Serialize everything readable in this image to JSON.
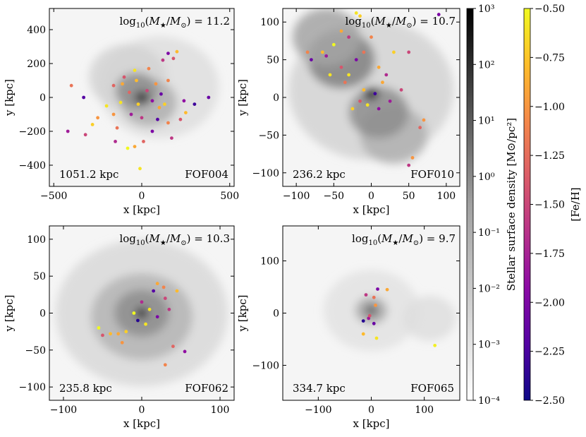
{
  "chart_data": {
    "type": "scatter",
    "panels": [
      {
        "id": "FOF004",
        "mass_label": "log10(M★/M⊙) = 11.2",
        "mass_value": "11.2",
        "name_label": "FOF004",
        "size_label": "1051.2 kpc",
        "xlabel": "x [kpc]",
        "ylabel": "y [kpc]",
        "xlim": [
          -525,
          525
        ],
        "ylim": [
          -525,
          525
        ],
        "xticks": [
          -500,
          0,
          500
        ],
        "xtick_labels": [
          "−500",
          "0",
          "500"
        ],
        "yticks": [
          -400,
          -200,
          0,
          200,
          400
        ],
        "ytick_labels": [
          "−400",
          "−200",
          "0",
          "200",
          "400"
        ],
        "points": [
          [
            -160,
            70
          ],
          [
            -110,
            80
          ],
          [
            -40,
            160
          ],
          [
            40,
            170
          ],
          [
            120,
            220
          ],
          [
            150,
            260
          ],
          [
            200,
            270
          ],
          [
            180,
            230
          ],
          [
            240,
            -20
          ],
          [
            380,
            0
          ],
          [
            -280,
            -160
          ],
          [
            -320,
            -220
          ],
          [
            -420,
            -200
          ],
          [
            -400,
            70
          ],
          [
            -330,
            0
          ],
          [
            -250,
            -120
          ],
          [
            -200,
            -50
          ],
          [
            -150,
            -260
          ],
          [
            -80,
            -300
          ],
          [
            -40,
            -290
          ],
          [
            10,
            -260
          ],
          [
            60,
            -200
          ],
          [
            150,
            -150
          ],
          [
            170,
            -240
          ],
          [
            250,
            -90
          ],
          [
            300,
            -40
          ],
          [
            -10,
            -420
          ],
          [
            220,
            -130
          ],
          [
            100,
            -60
          ],
          [
            -60,
            -100
          ],
          [
            -140,
            -180
          ],
          [
            -20,
            -40
          ],
          [
            30,
            40
          ],
          [
            80,
            80
          ],
          [
            110,
            20
          ],
          [
            -70,
            30
          ],
          [
            -120,
            -30
          ],
          [
            60,
            -20
          ],
          [
            150,
            100
          ],
          [
            -30,
            100
          ],
          [
            0,
            -120
          ],
          [
            90,
            -130
          ],
          [
            -100,
            120
          ],
          [
            130,
            -40
          ],
          [
            -160,
            -100
          ]
        ],
        "feh": [
          -1.3,
          -0.9,
          -0.6,
          -1.1,
          -1.6,
          -2.0,
          -0.8,
          -1.4,
          -1.9,
          -2.1,
          -0.7,
          -1.5,
          -1.8,
          -1.2,
          -2.2,
          -1.0,
          -0.6,
          -1.7,
          -0.5,
          -0.9,
          -1.3,
          -2.0,
          -1.1,
          -1.6,
          -0.8,
          -2.3,
          -0.6,
          -1.4,
          -0.9,
          -1.8,
          -1.2,
          -0.7,
          -1.5,
          -1.0,
          -2.1,
          -1.3,
          -0.6,
          -1.9,
          -1.1,
          -0.8,
          -1.6,
          -2.2,
          -1.4,
          -0.7,
          -1.0
        ],
        "density_blobs": [
          {
            "x": 0,
            "y": 0,
            "r": 40,
            "level": 0.9
          },
          {
            "x": -30,
            "y": 40,
            "r": 120,
            "level": 0.45
          },
          {
            "x": 40,
            "y": -30,
            "r": 160,
            "level": 0.3
          },
          {
            "x": -80,
            "y": 120,
            "r": 220,
            "level": 0.15
          },
          {
            "x": 100,
            "y": 60,
            "r": 340,
            "level": 0.1
          }
        ]
      },
      {
        "id": "FOF010",
        "mass_label": "log10(M★/M⊙) = 10.7",
        "mass_value": "10.7",
        "name_label": "FOF010",
        "size_label": "236.2 kpc",
        "xlabel": "x [kpc]",
        "ylabel": "y [kpc]",
        "xlim": [
          -118,
          118
        ],
        "ylim": [
          -118,
          118
        ],
        "xticks": [
          -100,
          -50,
          0,
          50,
          100
        ],
        "xtick_labels": [
          "−100",
          "−50",
          "0",
          "50",
          "100"
        ],
        "yticks": [
          -100,
          -50,
          0,
          50,
          100
        ],
        "ytick_labels": [
          "−100",
          "−50",
          "0",
          "50",
          "100"
        ],
        "points": [
          [
            -20,
            112
          ],
          [
            -15,
            108
          ],
          [
            -40,
            88
          ],
          [
            -30,
            80
          ],
          [
            -50,
            70
          ],
          [
            -60,
            55
          ],
          [
            -85,
            60
          ],
          [
            -80,
            50
          ],
          [
            -65,
            60
          ],
          [
            -40,
            40
          ],
          [
            -30,
            30
          ],
          [
            -20,
            50
          ],
          [
            -10,
            60
          ],
          [
            10,
            40
          ],
          [
            20,
            30
          ],
          [
            30,
            60
          ],
          [
            50,
            60
          ],
          [
            70,
            -30
          ],
          [
            65,
            -40
          ],
          [
            55,
            -80
          ],
          [
            50,
            -90
          ],
          [
            -10,
            10
          ],
          [
            5,
            5
          ],
          [
            -5,
            -10
          ],
          [
            10,
            -15
          ],
          [
            -15,
            -5
          ],
          [
            90,
            110
          ],
          [
            -35,
            20
          ],
          [
            -25,
            -15
          ],
          [
            15,
            20
          ],
          [
            25,
            -5
          ],
          [
            -55,
            30
          ],
          [
            0,
            80
          ],
          [
            40,
            10
          ]
        ],
        "feh": [
          -0.6,
          -0.7,
          -0.9,
          -1.6,
          -0.5,
          -1.8,
          -1.1,
          -2.1,
          -0.8,
          -1.4,
          -0.6,
          -2.0,
          -1.2,
          -0.9,
          -1.7,
          -0.7,
          -1.5,
          -1.0,
          -1.3,
          -1.0,
          -1.6,
          -0.8,
          -2.3,
          -0.6,
          -1.9,
          -1.4,
          -2.0,
          -1.2,
          -0.7,
          -0.9,
          -1.8,
          -0.6,
          -1.1,
          -1.5
        ],
        "density_blobs": [
          {
            "x": 0,
            "y": 5,
            "r": 10,
            "level": 0.95
          },
          {
            "x": -40,
            "y": 50,
            "r": 45,
            "level": 0.5
          },
          {
            "x": 10,
            "y": -20,
            "r": 40,
            "level": 0.45
          },
          {
            "x": -60,
            "y": 80,
            "r": 45,
            "level": 0.35
          },
          {
            "x": 30,
            "y": -50,
            "r": 45,
            "level": 0.3
          },
          {
            "x": 0,
            "y": 10,
            "r": 110,
            "level": 0.15
          }
        ]
      },
      {
        "id": "FOF062",
        "mass_label": "log10(M★/M⊙) = 10.3",
        "mass_value": "10.3",
        "name_label": "FOF062",
        "size_label": "235.8 kpc",
        "xlabel": "x [kpc]",
        "ylabel": "y [kpc]",
        "xlim": [
          -118,
          118
        ],
        "ylim": [
          -118,
          118
        ],
        "xticks": [
          -100,
          0,
          100
        ],
        "xtick_labels": [
          "−100",
          "0",
          "100"
        ],
        "yticks": [
          -100,
          -50,
          0,
          50,
          100
        ],
        "ytick_labels": [
          "−100",
          "−50",
          "0",
          "50",
          "100"
        ],
        "points": [
          [
            20,
            40
          ],
          [
            28,
            35
          ],
          [
            15,
            30
          ],
          [
            45,
            30
          ],
          [
            30,
            20
          ],
          [
            0,
            15
          ],
          [
            10,
            5
          ],
          [
            -10,
            0
          ],
          [
            20,
            -5
          ],
          [
            -55,
            -20
          ],
          [
            -40,
            -28
          ],
          [
            -30,
            -28
          ],
          [
            -20,
            -25
          ],
          [
            -25,
            -40
          ],
          [
            -50,
            -30
          ],
          [
            40,
            -45
          ],
          [
            55,
            -52
          ],
          [
            30,
            -70
          ],
          [
            5,
            -15
          ],
          [
            35,
            5
          ],
          [
            -5,
            -10
          ]
        ],
        "feh": [
          -0.9,
          -1.1,
          -2.2,
          -0.8,
          -1.5,
          -1.7,
          -0.6,
          -0.5,
          -2.0,
          -0.5,
          -0.8,
          -0.9,
          -0.7,
          -1.0,
          -1.4,
          -1.3,
          -1.9,
          -1.1,
          -0.6,
          -1.6,
          -2.4
        ],
        "density_blobs": [
          {
            "x": 0,
            "y": 0,
            "r": 8,
            "level": 0.95
          },
          {
            "x": 0,
            "y": 0,
            "r": 35,
            "level": 0.45
          },
          {
            "x": 0,
            "y": -5,
            "r": 65,
            "level": 0.28
          },
          {
            "x": 0,
            "y": 0,
            "r": 110,
            "level": 0.12
          }
        ]
      },
      {
        "id": "FOF065",
        "mass_label": "log10(M★/M⊙) = 9.7",
        "mass_value": "9.7",
        "name_label": "FOF065",
        "size_label": "334.7 kpc",
        "xlabel": "x [kpc]",
        "ylabel": "y [kpc]",
        "xlim": [
          -167,
          167
        ],
        "ylim": [
          -167,
          167
        ],
        "xticks": [
          -100,
          0,
          100
        ],
        "xtick_labels": [
          "−100",
          "0",
          "100"
        ],
        "yticks": [
          -100,
          0,
          100
        ],
        "ytick_labels": [
          "−100",
          "0",
          "100"
        ],
        "points": [
          [
            12,
            46
          ],
          [
            -10,
            35
          ],
          [
            5,
            30
          ],
          [
            30,
            45
          ],
          [
            -5,
            -10
          ],
          [
            5,
            -20
          ],
          [
            -15,
            -15
          ],
          [
            -15,
            -40
          ],
          [
            10,
            -48
          ],
          [
            120,
            -62
          ],
          [
            -3,
            -5
          ],
          [
            8,
            15
          ]
        ],
        "feh": [
          -2.0,
          -1.6,
          -1.2,
          -0.9,
          -1.8,
          -2.1,
          -2.4,
          -0.8,
          -0.6,
          -0.55,
          -1.4,
          -1.0
        ],
        "density_blobs": [
          {
            "x": 0,
            "y": 5,
            "r": 10,
            "level": 0.85
          },
          {
            "x": 0,
            "y": 5,
            "r": 30,
            "level": 0.35
          },
          {
            "x": 110,
            "y": -10,
            "r": 50,
            "level": 0.1
          },
          {
            "x": 0,
            "y": 5,
            "r": 90,
            "level": 0.08
          }
        ]
      }
    ],
    "density_colorbar": {
      "label": "Stellar surface density [M⊙/pc²]",
      "scale": "log",
      "range": [
        0.0001,
        1000
      ],
      "tick_labels": [
        "10⁻⁴",
        "10⁻³",
        "10⁻²",
        "10⁻¹",
        "10⁰",
        "10¹",
        "10²",
        "10³"
      ],
      "tick_values": [
        0.0001,
        0.001,
        0.01,
        0.1,
        1,
        10,
        100,
        1000
      ]
    },
    "feh_colorbar": {
      "label": "[Fe/H]",
      "range": [
        -2.5,
        -0.5
      ],
      "tick_values": [
        -2.5,
        -2.25,
        -2.0,
        -1.75,
        -1.5,
        -1.25,
        -1.0,
        -0.75,
        -0.5
      ],
      "tick_labels": [
        "−2.50",
        "−2.25",
        "−2.00",
        "−1.75",
        "−1.50",
        "−1.25",
        "−1.00",
        "−0.75",
        "−0.50"
      ],
      "colormap": [
        "#0d0887",
        "#5302a3",
        "#8b0aa5",
        "#b83289",
        "#db5c68",
        "#f48849",
        "#febd2a",
        "#f0f921"
      ]
    }
  }
}
